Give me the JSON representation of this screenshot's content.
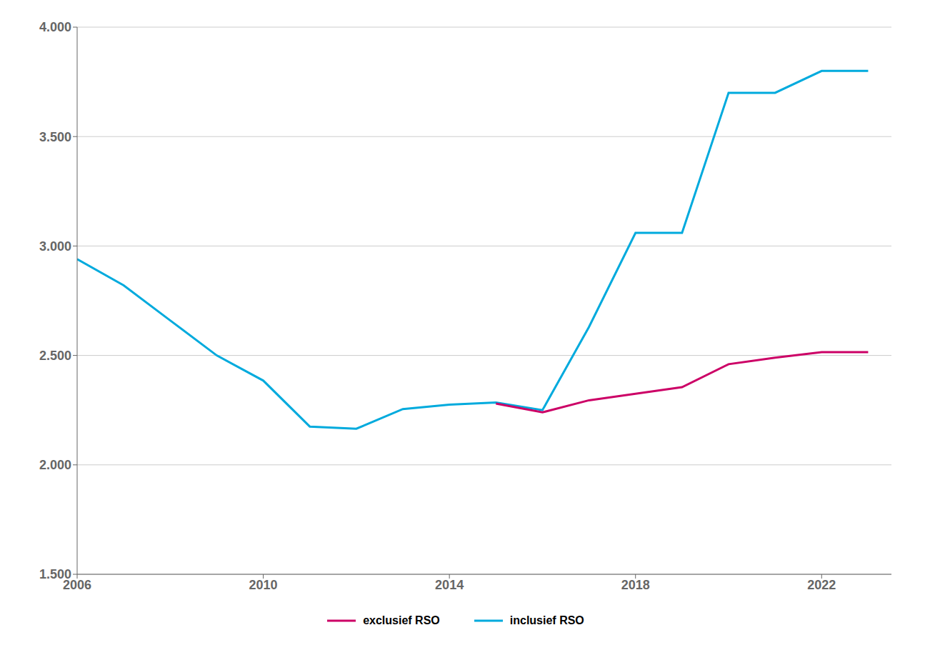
{
  "chart_data": {
    "type": "line",
    "series": [
      {
        "name": "inclusief RSO",
        "color": "#00AADD",
        "x": [
          2006,
          2007,
          2008,
          2009,
          2010,
          2011,
          2012,
          2013,
          2014,
          2015,
          2016,
          2017,
          2018,
          2019,
          2020,
          2021,
          2022,
          2023
        ],
        "values": [
          2940,
          2820,
          2660,
          2500,
          2385,
          2175,
          2165,
          2255,
          2275,
          2285,
          2250,
          2630,
          3060,
          3060,
          3700,
          3700,
          3800,
          3800
        ]
      },
      {
        "name": "exclusief RSO",
        "color": "#CC0066",
        "x": [
          2015,
          2016,
          2017,
          2018,
          2019,
          2020,
          2021,
          2022,
          2023
        ],
        "values": [
          2280,
          2240,
          2295,
          2325,
          2355,
          2460,
          2490,
          2515,
          2515
        ]
      }
    ],
    "xlim": [
      2006,
      2023.5
    ],
    "xticks": [
      2006,
      2010,
      2014,
      2018,
      2022
    ],
    "ylim": [
      1500,
      4000
    ],
    "yticks": [
      {
        "value": 1500,
        "label": "1.500"
      },
      {
        "value": 2000,
        "label": "2.000"
      },
      {
        "value": 2500,
        "label": "2.500"
      },
      {
        "value": 3000,
        "label": "3.000"
      },
      {
        "value": 3500,
        "label": "3.500"
      },
      {
        "value": 4000,
        "label": "4.000"
      }
    ],
    "grid": true,
    "legend": "bottom"
  }
}
